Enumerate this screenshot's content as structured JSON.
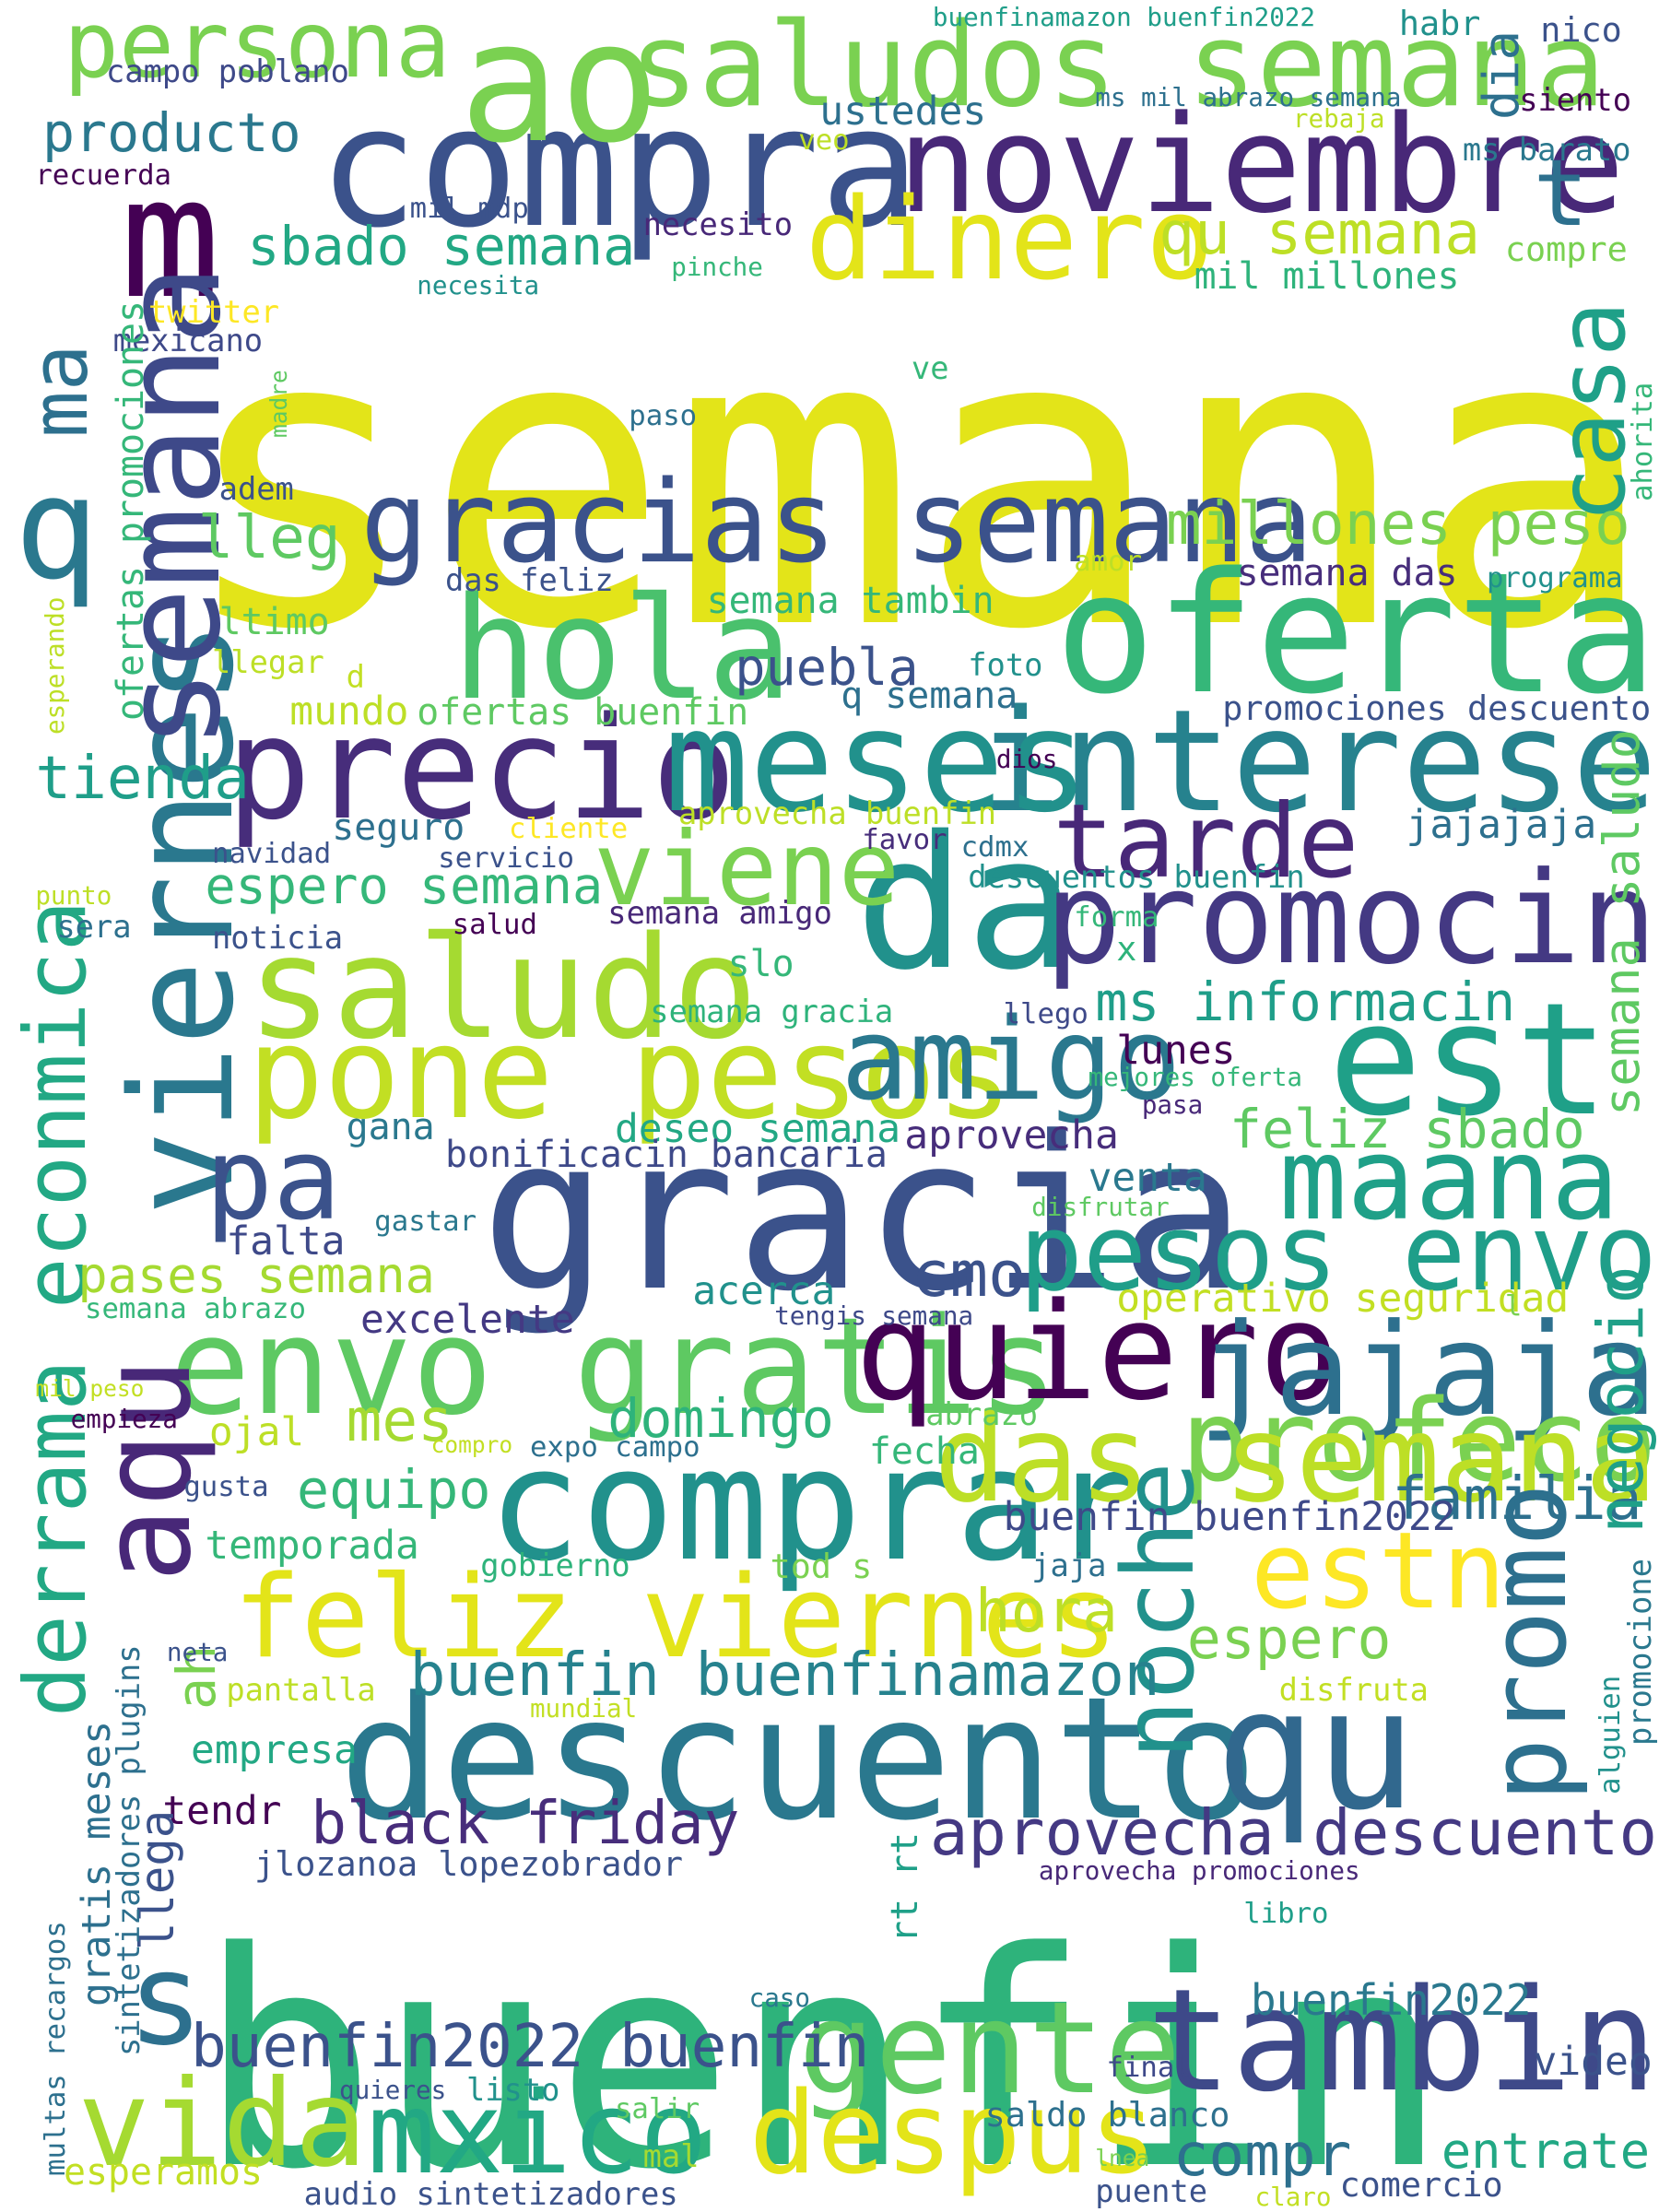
{
  "colors": {
    "background": "#ffffff",
    "yellow": "#e3e419",
    "lime": "#a5da31",
    "green": "#5ec962",
    "emerald": "#2eb37b",
    "teal": "#21918c",
    "blue": "#2d708e",
    "indigo": "#3b528b",
    "purple": "#472d7b",
    "dark": "#440154"
  },
  "words": [
    {
      "text": "semana",
      "color": "#e3e419"
    },
    {
      "text": "buenfin",
      "color": "#2eb37b"
    },
    {
      "text": "gracia",
      "color": "#3b528b"
    },
    {
      "text": "compra",
      "color": "#3b528b"
    },
    {
      "text": "m",
      "color": "#440154"
    },
    {
      "text": "ao",
      "color": "#7ad151"
    },
    {
      "text": "da",
      "color": "#21918c"
    },
    {
      "text": "descuento",
      "color": "#2a788e"
    },
    {
      "text": "oferta",
      "color": "#35b779"
    },
    {
      "text": "precio",
      "color": "#472d7b"
    },
    {
      "text": "interese",
      "color": "#26828e"
    },
    {
      "text": "meses",
      "color": "#21918c"
    },
    {
      "text": "comprar",
      "color": "#21918c"
    },
    {
      "text": "hola",
      "color": "#4ac16d"
    },
    {
      "text": "qu",
      "color": "#31688e"
    },
    {
      "text": "est",
      "color": "#1fa088"
    },
    {
      "text": "saludos semana",
      "color": "#7ad151"
    },
    {
      "text": "noviembre",
      "color": "#482878"
    },
    {
      "text": "gracias semana",
      "color": "#3b528b"
    },
    {
      "text": "saludo",
      "color": "#a5da31"
    },
    {
      "text": "pone pesos",
      "color": "#c2df23"
    },
    {
      "text": "promocin",
      "color": "#443983"
    },
    {
      "text": "envo gratis",
      "color": "#5ec962"
    },
    {
      "text": "quiero",
      "color": "#440154"
    },
    {
      "text": "jajaja",
      "color": "#2d708e"
    },
    {
      "text": "feliz viernes",
      "color": "#e3e419"
    },
    {
      "text": "viernes",
      "color": "#2a788e"
    },
    {
      "text": "semana",
      "color": "#3e4989"
    },
    {
      "text": "tambin",
      "color": "#3e4989"
    },
    {
      "text": "mxico",
      "color": "#22a884"
    },
    {
      "text": "vida",
      "color": "#a5da31"
    },
    {
      "text": "gente",
      "color": "#5ec962"
    },
    {
      "text": "despus",
      "color": "#e3e419"
    },
    {
      "text": "profeco",
      "color": "#7ad151"
    },
    {
      "text": "das semana",
      "color": "#bddf26"
    },
    {
      "text": "dinero",
      "color": "#e3e419"
    },
    {
      "text": "maana",
      "color": "#1fa088"
    },
    {
      "text": "pesos envo",
      "color": "#1f9e89"
    },
    {
      "text": "amigo",
      "color": "#2a788e"
    },
    {
      "text": "viene",
      "color": "#7ad151"
    },
    {
      "text": "tarde",
      "color": "#482878"
    },
    {
      "text": "pa",
      "color": "#3b528b"
    },
    {
      "text": "aqu",
      "color": "#482878"
    },
    {
      "text": "derrama econmica",
      "color": "#22a884"
    },
    {
      "text": "noche",
      "color": "#21918c"
    },
    {
      "text": "promo",
      "color": "#2d708e"
    },
    {
      "text": "estn",
      "color": "#fde725"
    },
    {
      "text": "casa",
      "color": "#1fa088"
    },
    {
      "text": "persona",
      "color": "#7ad151"
    },
    {
      "text": "t",
      "color": "#2d708e"
    },
    {
      "text": "q",
      "color": "#2a788e"
    },
    {
      "text": "ma",
      "color": "#2d708e"
    },
    {
      "text": "s",
      "color": "#2d708e"
    },
    {
      "text": "buenfin buenfinamazon",
      "color": "#26828e"
    },
    {
      "text": "buenfin2022 buenfin",
      "color": "#3b528b"
    },
    {
      "text": "aprovecha descuento",
      "color": "#443983"
    },
    {
      "text": "black friday",
      "color": "#472d7b"
    },
    {
      "text": "millones peso",
      "color": "#7ad151"
    },
    {
      "text": "tienda",
      "color": "#1f9e89"
    },
    {
      "text": "lleg",
      "color": "#5ec962"
    },
    {
      "text": "qu semana",
      "color": "#bddf26"
    },
    {
      "text": "sbado semana",
      "color": "#22a884"
    },
    {
      "text": "producto",
      "color": "#2a788e"
    },
    {
      "text": "hora",
      "color": "#bddf26"
    },
    {
      "text": "espero",
      "color": "#7ad151"
    },
    {
      "text": "familia",
      "color": "#2d708e"
    },
    {
      "text": "compr",
      "color": "#2d708e"
    },
    {
      "text": "mes",
      "color": "#a5da31"
    },
    {
      "text": "domingo",
      "color": "#2eb37b"
    },
    {
      "text": "equipo",
      "color": "#35b779"
    },
    {
      "text": "feliz sbado",
      "color": "#5ec962"
    },
    {
      "text": "cmo",
      "color": "#3b528b"
    },
    {
      "text": "espero semana",
      "color": "#35b779"
    },
    {
      "text": "ms informacin",
      "color": "#1f9e89"
    },
    {
      "text": "puebla",
      "color": "#3b528b"
    },
    {
      "text": "negocio",
      "color": "#1fa088"
    },
    {
      "text": "semana saludo",
      "color": "#5ec962"
    },
    {
      "text": "entrate",
      "color": "#22a884"
    },
    {
      "text": "video",
      "color": "#3b528b"
    },
    {
      "text": "buenfin2022",
      "color": "#2a788e"
    },
    {
      "text": "pases semana",
      "color": "#a5da31"
    },
    {
      "text": "ustedes",
      "color": "#2d708e"
    },
    {
      "text": "buenfin buenfin2022",
      "color": "#3e4989"
    },
    {
      "text": "temporada",
      "color": "#35b779"
    },
    {
      "text": "acerca",
      "color": "#21918c"
    },
    {
      "text": "excelente",
      "color": "#443983"
    },
    {
      "text": "operativo seguridad",
      "color": "#c2df23"
    },
    {
      "text": "jajajaja",
      "color": "#2d708e"
    },
    {
      "text": "aprovecha",
      "color": "#472d7b"
    },
    {
      "text": "deseo semana",
      "color": "#22a884"
    },
    {
      "text": "bonificacin bancaria",
      "color": "#3e4989"
    },
    {
      "text": "venta",
      "color": "#2a788e"
    },
    {
      "text": "falta",
      "color": "#3e4989"
    },
    {
      "text": "gana",
      "color": "#2a788e"
    },
    {
      "text": "lunes",
      "color": "#440154"
    },
    {
      "text": "slo",
      "color": "#35b779"
    },
    {
      "text": "fecha",
      "color": "#35b779"
    },
    {
      "text": "ojal",
      "color": "#bddf26"
    },
    {
      "text": "empresa",
      "color": "#22a884"
    },
    {
      "text": "tendr",
      "color": "#440154"
    },
    {
      "text": "ah",
      "color": "#7ad151"
    },
    {
      "text": "llega",
      "color": "#3b528b"
    },
    {
      "text": "mundo",
      "color": "#bddf26"
    },
    {
      "text": "ofertas buenfin",
      "color": "#5ec962"
    },
    {
      "text": "q semana",
      "color": "#2d708e"
    },
    {
      "text": "semana tambin",
      "color": "#35b779"
    },
    {
      "text": "semana das",
      "color": "#472d7b"
    },
    {
      "text": "das feliz",
      "color": "#3b528b"
    },
    {
      "text": "promociones descuento",
      "color": "#3b528b"
    },
    {
      "text": "descuentos buenfin",
      "color": "#21918c"
    },
    {
      "text": "semana amigo",
      "color": "#482878"
    },
    {
      "text": "semana gracia",
      "color": "#2eb37b"
    },
    {
      "text": "aprovecha buenfin",
      "color": "#bddf26"
    },
    {
      "text": "seguro",
      "color": "#2d708e"
    },
    {
      "text": "ltimo",
      "color": "#5ec962"
    },
    {
      "text": "llegar",
      "color": "#bddf26"
    },
    {
      "text": "foto",
      "color": "#21918c"
    },
    {
      "text": "mil millones",
      "color": "#2eb37b"
    },
    {
      "text": "compre",
      "color": "#7ad151"
    },
    {
      "text": "necesito",
      "color": "#482878"
    },
    {
      "text": "ms mil abrazo semana",
      "color": "#2d708e"
    },
    {
      "text": "ms barato",
      "color": "#2a788e"
    },
    {
      "text": "siento",
      "color": "#440154"
    },
    {
      "text": "campo poblano",
      "color": "#3e4989"
    },
    {
      "text": "mexicano",
      "color": "#3e4989"
    },
    {
      "text": "recuerda",
      "color": "#440154"
    },
    {
      "text": "mil mdp",
      "color": "#3b528b"
    },
    {
      "text": "twitter",
      "color": "#fde725"
    },
    {
      "text": "necesita",
      "color": "#21918c"
    },
    {
      "text": "pinche",
      "color": "#35b779"
    },
    {
      "text": "paso",
      "color": "#2d708e"
    },
    {
      "text": "ve",
      "color": "#35b779"
    },
    {
      "text": "adem",
      "color": "#3b528b"
    },
    {
      "text": "programa",
      "color": "#21918c"
    },
    {
      "text": "amor",
      "color": "#bddf26"
    },
    {
      "text": "ahorita",
      "color": "#35b779"
    },
    {
      "text": "dia",
      "color": "#2d708e"
    },
    {
      "text": "habr",
      "color": "#21918c"
    },
    {
      "text": "nico",
      "color": "#3b528b"
    },
    {
      "text": "buenfinamazon buenfin2022",
      "color": "#1f9e89"
    },
    {
      "text": "rebaja",
      "color": "#bddf26"
    },
    {
      "text": "veo",
      "color": "#bddf26"
    },
    {
      "text": "madre",
      "color": "#5ec962"
    },
    {
      "text": "esperando",
      "color": "#bddf26"
    },
    {
      "text": "ofertas promociones",
      "color": "#35b779"
    },
    {
      "text": "d",
      "color": "#c2df23"
    },
    {
      "text": "dios",
      "color": "#440154"
    },
    {
      "text": "cliente",
      "color": "#fde725"
    },
    {
      "text": "favor",
      "color": "#472d7b"
    },
    {
      "text": "cdmx",
      "color": "#2d708e"
    },
    {
      "text": "navidad",
      "color": "#3b528b"
    },
    {
      "text": "servicio",
      "color": "#3b528b"
    },
    {
      "text": "punto",
      "color": "#bddf26"
    },
    {
      "text": "sera",
      "color": "#2d708e"
    },
    {
      "text": "noticia",
      "color": "#3b528b"
    },
    {
      "text": "salud",
      "color": "#440154"
    },
    {
      "text": "forma",
      "color": "#35b779"
    },
    {
      "text": "x",
      "color": "#2eb37b"
    },
    {
      "text": "llego",
      "color": "#3e4989"
    },
    {
      "text": "mejores oferta",
      "color": "#35b779"
    },
    {
      "text": "pasa",
      "color": "#482878"
    },
    {
      "text": "disfrutar",
      "color": "#5ec962"
    },
    {
      "text": "gastar",
      "color": "#2a788e"
    },
    {
      "text": "semana abrazo",
      "color": "#35b779"
    },
    {
      "text": "tengis semana",
      "color": "#3e4989"
    },
    {
      "text": "l",
      "color": "#7ad151"
    },
    {
      "text": "mil peso",
      "color": "#c2df23"
    },
    {
      "text": "empieza",
      "color": "#440154"
    },
    {
      "text": "abrazo",
      "color": "#5ec962"
    },
    {
      "text": "compro",
      "color": "#c2df23"
    },
    {
      "text": "expo campo",
      "color": "#2d708e"
    },
    {
      "text": "gusta",
      "color": "#3b528b"
    },
    {
      "text": "gobierno",
      "color": "#2eb37b"
    },
    {
      "text": "tod s",
      "color": "#7ad151"
    },
    {
      "text": "jaja",
      "color": "#2d708e"
    },
    {
      "text": "neta",
      "color": "#3b528b"
    },
    {
      "text": "pantalla",
      "color": "#bddf26"
    },
    {
      "text": "mundial",
      "color": "#c2df23"
    },
    {
      "text": "disfruta",
      "color": "#c2df23"
    },
    {
      "text": "alguien",
      "color": "#21918c"
    },
    {
      "text": "promocione",
      "color": "#2a788e"
    },
    {
      "text": "jlozanoa lopezobrador",
      "color": "#3b528b"
    },
    {
      "text": "aprovecha promociones",
      "color": "#482878"
    },
    {
      "text": "libro",
      "color": "#1f9e89"
    },
    {
      "text": "caso",
      "color": "#2a788e"
    },
    {
      "text": "rt rt",
      "color": "#1fa088"
    },
    {
      "text": "final",
      "color": "#3e4989"
    },
    {
      "text": "quieres",
      "color": "#3b528b"
    },
    {
      "text": "listo",
      "color": "#21918c"
    },
    {
      "text": "salir",
      "color": "#5ec962"
    },
    {
      "text": "mal",
      "color": "#a5da31"
    },
    {
      "text": "saldo blanco",
      "color": "#2d708e"
    },
    {
      "text": "lnea",
      "color": "#7ad151"
    },
    {
      "text": "puente",
      "color": "#3b528b"
    },
    {
      "text": "claro",
      "color": "#c2df23"
    },
    {
      "text": "comercio",
      "color": "#3b528b"
    },
    {
      "text": "esperamos",
      "color": "#c2df23"
    },
    {
      "text": "audio sintetizadores",
      "color": "#3b528b"
    },
    {
      "text": "multas recargos",
      "color": "#2d708e"
    },
    {
      "text": "sintetizadores plugins",
      "color": "#2d708e"
    },
    {
      "text": "gratis meses",
      "color": "#2d708e"
    }
  ]
}
